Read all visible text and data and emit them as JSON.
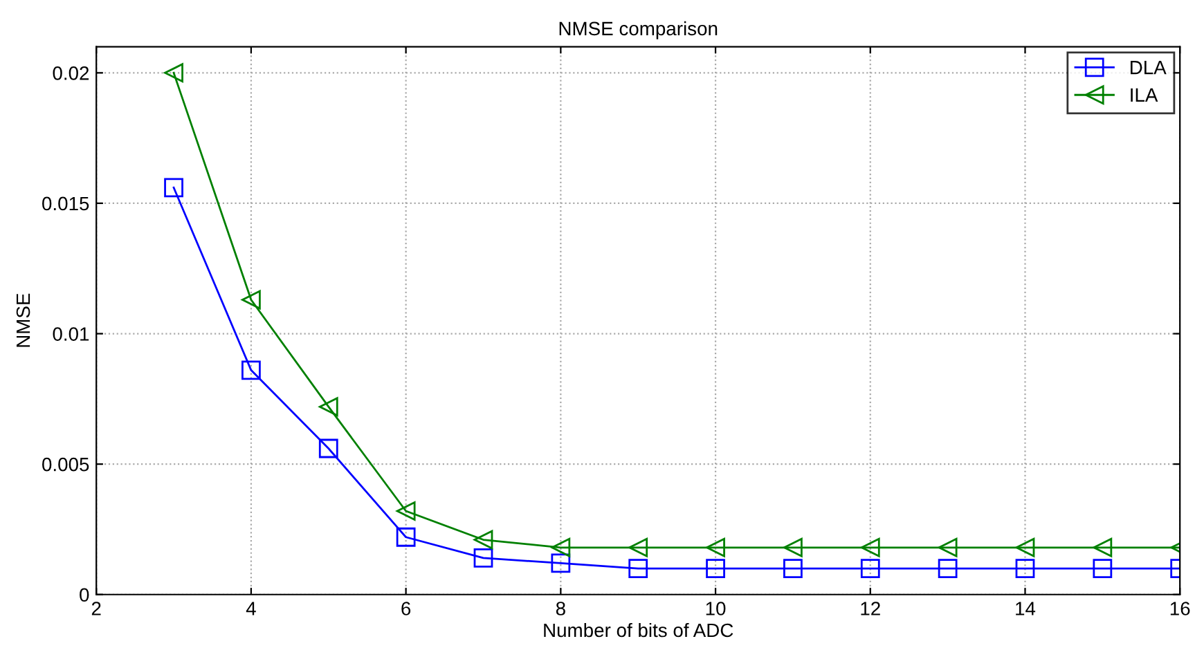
{
  "chart_data": {
    "type": "line",
    "title": "NMSE comparison",
    "xlabel": "Number of bits of ADC",
    "ylabel": "NMSE",
    "x": [
      3,
      4,
      5,
      6,
      7,
      8,
      9,
      10,
      11,
      12,
      13,
      14,
      15,
      16
    ],
    "series": [
      {
        "name": "DLA",
        "color": "#0000ff",
        "marker": "square",
        "values": [
          0.0156,
          0.0086,
          0.0056,
          0.0022,
          0.0014,
          0.0012,
          0.001,
          0.001,
          0.001,
          0.001,
          0.001,
          0.001,
          0.001,
          0.001
        ]
      },
      {
        "name": "ILA",
        "color": "#008000",
        "marker": "triangle",
        "values": [
          0.02,
          0.0113,
          0.0072,
          0.0032,
          0.0021,
          0.0018,
          0.0018,
          0.0018,
          0.0018,
          0.0018,
          0.0018,
          0.0018,
          0.0018,
          0.0018
        ]
      }
    ],
    "xlim": [
      2,
      16
    ],
    "xticks": [
      2,
      4,
      6,
      8,
      10,
      12,
      14,
      16
    ],
    "ylim": [
      0,
      0.021
    ],
    "yticks": [
      0,
      0.005,
      0.01,
      0.015,
      0.02
    ],
    "grid": true,
    "legend": "top right",
    "line_style": "solid"
  }
}
